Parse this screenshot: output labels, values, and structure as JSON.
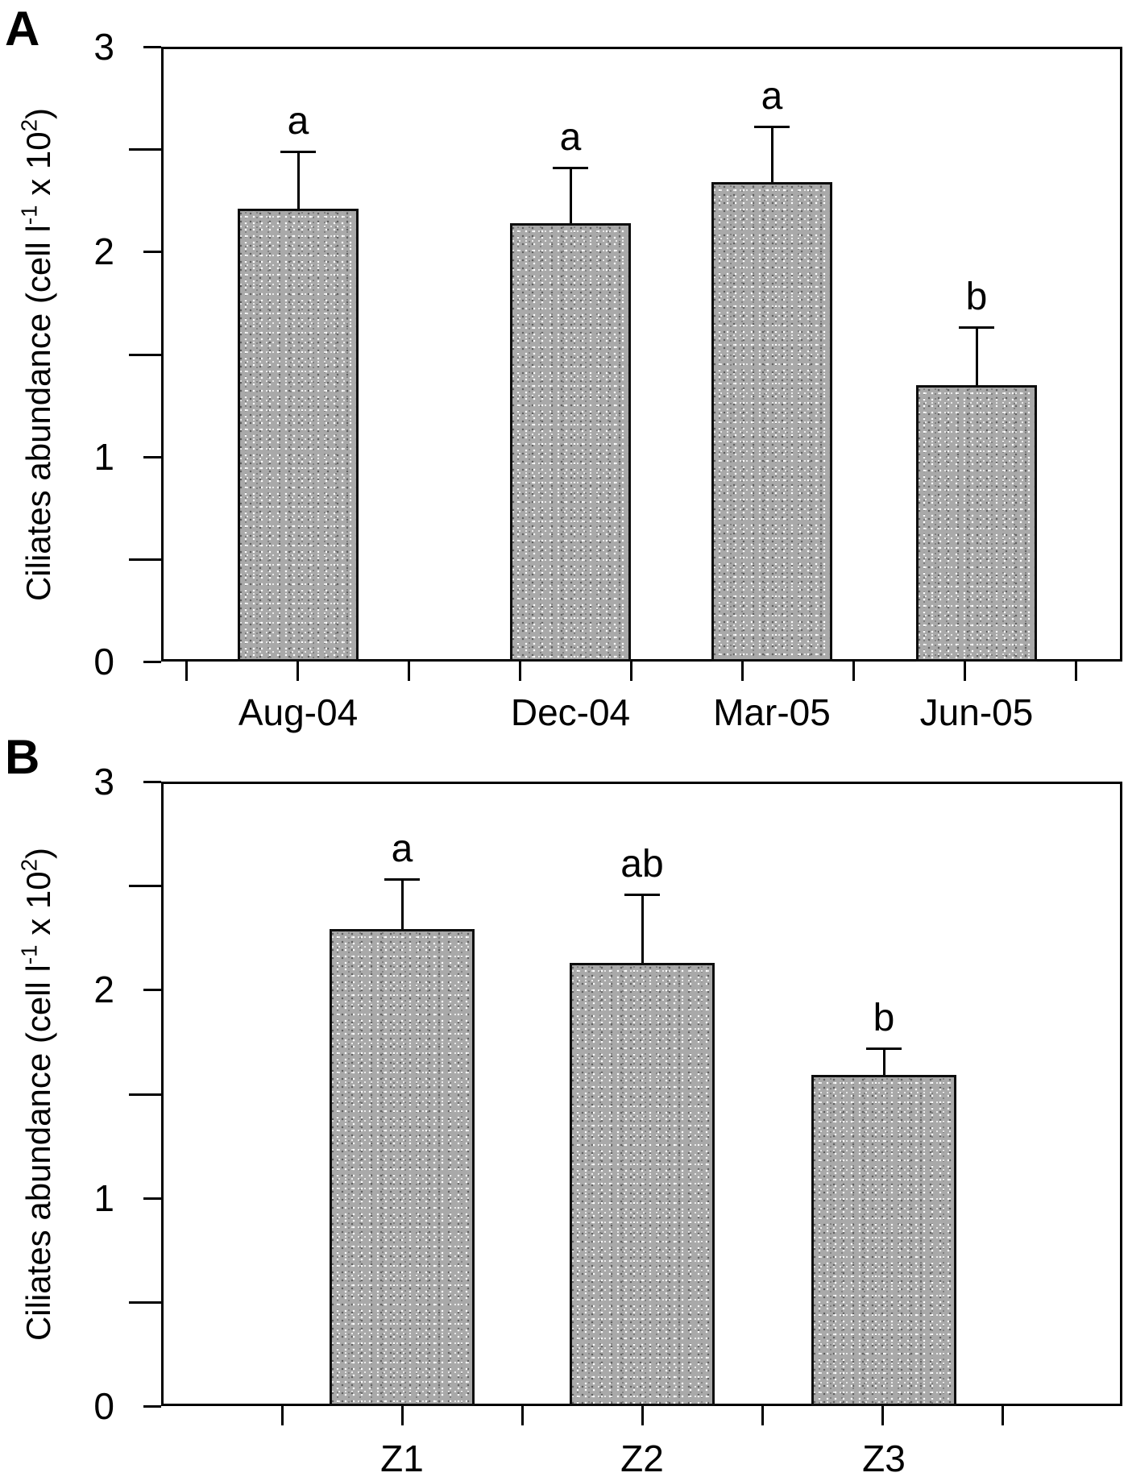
{
  "figure_type": "two-panel-bar-figure",
  "chart_data": [
    {
      "type": "bar",
      "panel_letter": "A",
      "title": "",
      "categories": [
        "Aug-04",
        "Dec-04",
        "Mar-05",
        "Jun-05"
      ],
      "values": [
        2.21,
        2.14,
        2.34,
        1.35
      ],
      "error_plus": [
        0.28,
        0.27,
        0.27,
        0.28
      ],
      "sig_letters": [
        "a",
        "a",
        "a",
        "b"
      ],
      "ylabel_plain": "Ciliates abundance (cell l-1 x 102)",
      "ylabel_segments": [
        {
          "text": "Ciliates abundance (cell l",
          "sup": false
        },
        {
          "text": "-1",
          "sup": true
        },
        {
          "text": " x 10",
          "sup": false
        },
        {
          "text": "2",
          "sup": true
        },
        {
          "text": ")",
          "sup": false
        }
      ],
      "xlabel": "",
      "ylim": [
        0,
        3
      ],
      "major_yticks": [
        0,
        1,
        2,
        3
      ],
      "minor_yticks": [
        0.5,
        1.5,
        2.5
      ],
      "grid": false,
      "legend": null,
      "bar_fill": "#a9a9a9",
      "bar_border": "#000000",
      "error_direction": "up-only"
    },
    {
      "type": "bar",
      "panel_letter": "B",
      "title": "",
      "categories": [
        "Z1",
        "Z2",
        "Z3"
      ],
      "values": [
        2.29,
        2.13,
        1.59
      ],
      "error_plus": [
        0.24,
        0.33,
        0.13
      ],
      "sig_letters": [
        "a",
        "ab",
        "b"
      ],
      "ylabel_plain": "Ciliates abundance (cell l-1 x 102)",
      "ylabel_segments": [
        {
          "text": "Ciliates abundance (cell l",
          "sup": false
        },
        {
          "text": "-1",
          "sup": true
        },
        {
          "text": " x 10",
          "sup": false
        },
        {
          "text": "2",
          "sup": true
        },
        {
          "text": ")",
          "sup": false
        }
      ],
      "xlabel": "",
      "ylim": [
        0,
        3
      ],
      "major_yticks": [
        0,
        1,
        2,
        3
      ],
      "minor_yticks": [
        0.5,
        1.5,
        2.5
      ],
      "grid": false,
      "legend": null,
      "bar_fill": "#a9a9a9",
      "bar_border": "#000000",
      "error_direction": "up-only"
    }
  ]
}
